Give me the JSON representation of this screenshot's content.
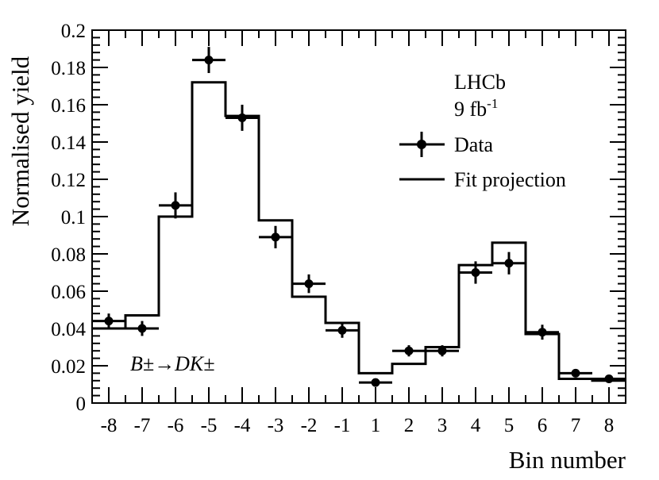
{
  "chart_data": {
    "type": "bar",
    "xlabel": "Bin number",
    "ylabel": "Normalised yield",
    "categories": [
      "-8",
      "-7",
      "-6",
      "-5",
      "-4",
      "-3",
      "-2",
      "-1",
      "1",
      "2",
      "3",
      "4",
      "5",
      "6",
      "7",
      "8"
    ],
    "ylim": [
      0,
      0.2
    ],
    "yticks": [
      "0",
      "0.02",
      "0.04",
      "0.06",
      "0.08",
      "0.1",
      "0.12",
      "0.14",
      "0.16",
      "0.18",
      "0.2"
    ],
    "grid": false,
    "legend_position": "top-right",
    "series": [
      {
        "name": "Data",
        "style": "points-with-errorbars",
        "values": [
          0.044,
          0.04,
          0.106,
          0.184,
          0.153,
          0.089,
          0.064,
          0.039,
          0.011,
          0.028,
          0.028,
          0.07,
          0.075,
          0.038,
          0.016,
          0.013
        ],
        "errors": [
          0.004,
          0.004,
          0.007,
          0.007,
          0.007,
          0.006,
          0.005,
          0.004,
          0.002,
          0.003,
          0.003,
          0.006,
          0.006,
          0.004,
          0.002,
          0.002
        ]
      },
      {
        "name": "Fit projection",
        "style": "step",
        "values": [
          0.04,
          0.047,
          0.1,
          0.172,
          0.154,
          0.098,
          0.057,
          0.043,
          0.016,
          0.021,
          0.03,
          0.074,
          0.086,
          0.037,
          0.013,
          0.012
        ]
      }
    ],
    "annotations": {
      "experiment": "LHCb",
      "lumi_value": "9 fb",
      "lumi_exp": "-1",
      "decay": "B±→DK±"
    },
    "colors": {
      "data": "#000000",
      "fit": "#000000"
    }
  }
}
